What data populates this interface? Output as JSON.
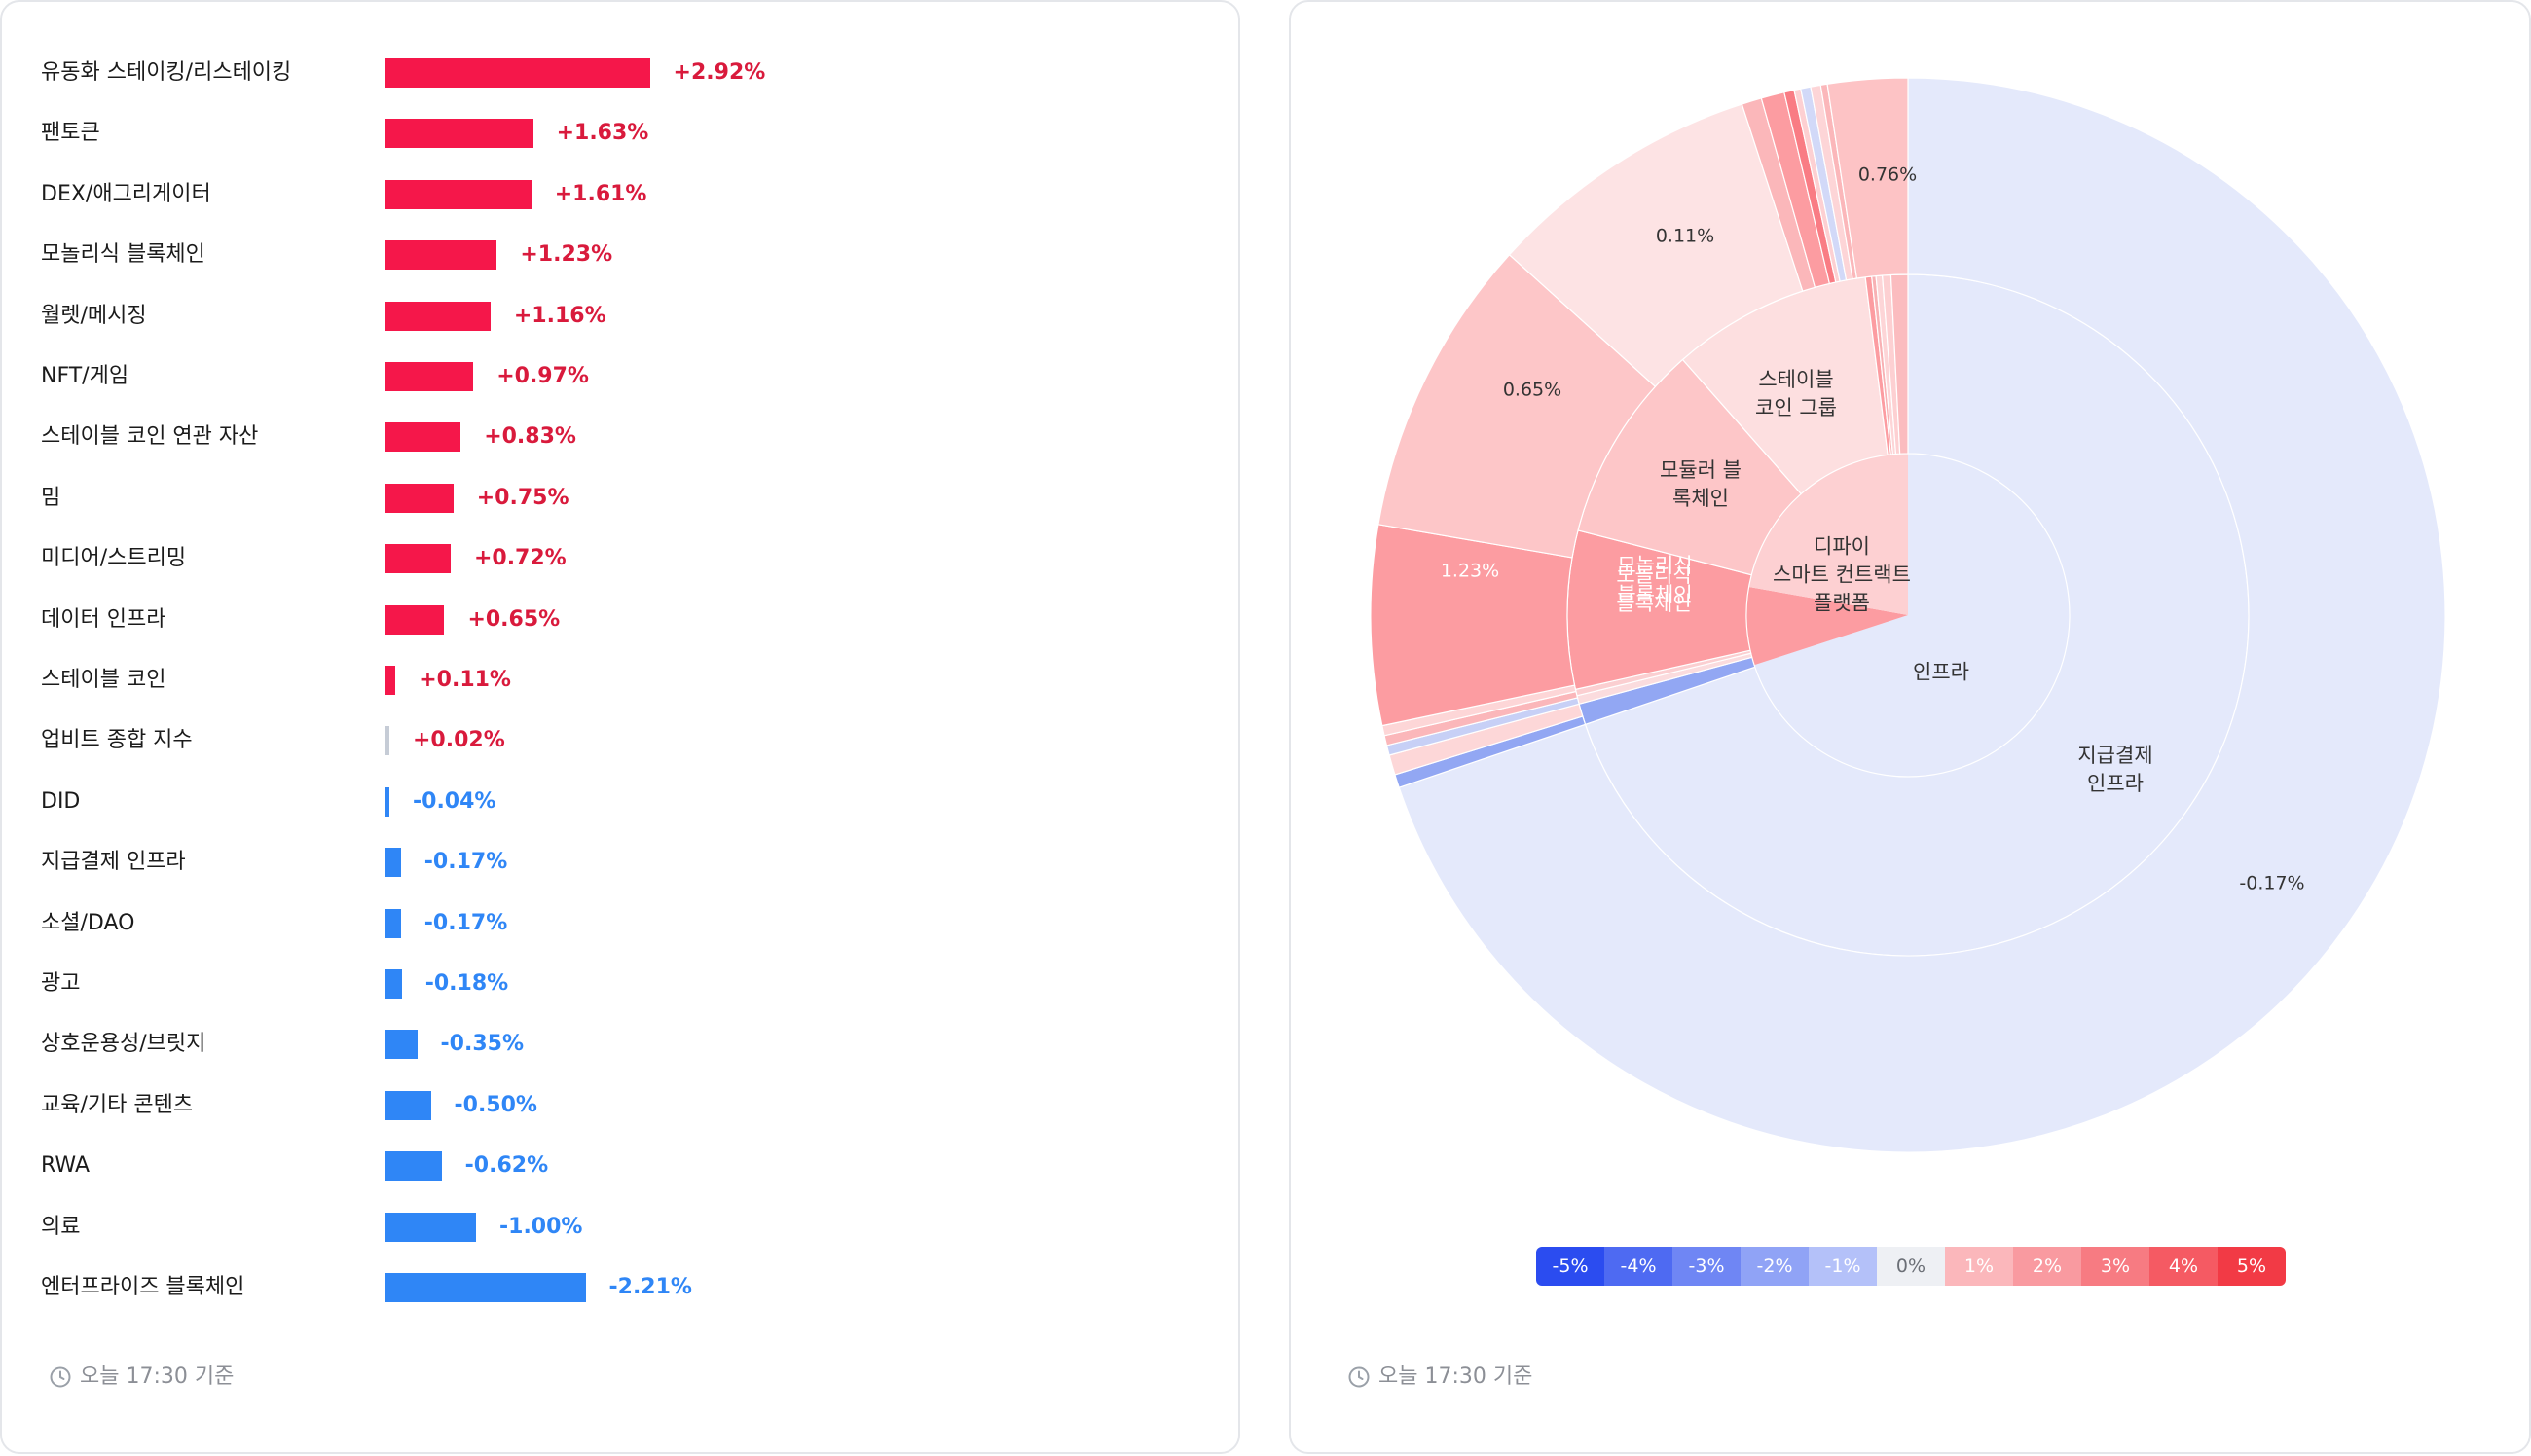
{
  "chart_data": [
    {
      "type": "bar",
      "orientation": "horizontal",
      "categories": [
        "유동화 스테이킹/리스테이킹",
        "팬토큰",
        "DEX/애그리게이터",
        "모놀리식 블록체인",
        "월렛/메시징",
        "NFT/게임",
        "스테이블 코인 연관 자산",
        "밈",
        "미디어/스트리밍",
        "데이터 인프라",
        "스테이블 코인",
        "업비트 종합 지수",
        "DID",
        "지급결제 인프라",
        "소셜/DAO",
        "광고",
        "상호운용성/브릿지",
        "교육/기타 콘텐츠",
        "RWA",
        "의료",
        "엔터프라이즈 블록체인"
      ],
      "values": [
        2.92,
        1.63,
        1.61,
        1.23,
        1.16,
        0.97,
        0.83,
        0.75,
        0.72,
        0.65,
        0.11,
        0.02,
        -0.04,
        -0.17,
        -0.17,
        -0.18,
        -0.35,
        -0.5,
        -0.62,
        -1.0,
        -2.21
      ],
      "value_labels": [
        "+2.92%",
        "+1.63%",
        "+1.61%",
        "+1.23%",
        "+1.16%",
        "+0.97%",
        "+0.83%",
        "+0.75%",
        "+0.72%",
        "+0.65%",
        "+0.11%",
        "+0.02%",
        "-0.04%",
        "-0.17%",
        "-0.17%",
        "-0.18%",
        "-0.35%",
        "-0.50%",
        "-0.62%",
        "-1.00%",
        "-2.21%"
      ],
      "colors": {
        "positive": "#f5174a",
        "negative": "#2f86f6",
        "neutral": "#c6ccd6",
        "positive_text": "#d91a3c",
        "negative_text": "#2f86f6"
      },
      "footer": "오늘 17:30 기준"
    },
    {
      "type": "sunburst",
      "inner_ring": [
        {
          "label": "인프라",
          "share": 0.7,
          "color": "#e4e9fb"
        },
        {
          "label": "모놀리식\n블록체인",
          "share": 0.078,
          "color": "#fc9ca1"
        },
        {
          "label": "디파이\n스마트 컨트랙트\n플랫폼",
          "share": 0.222,
          "color": "#fdd0d2"
        }
      ],
      "middle_ring": [
        {
          "label": "지급결제\n인프라",
          "share": 0.698,
          "color": "#e4e9fb"
        },
        {
          "label": "",
          "share": 0.01,
          "color": "#92a7f3"
        },
        {
          "label": "",
          "share": 0.004,
          "color": "#fbdcde"
        },
        {
          "label": "",
          "share": 0.003,
          "color": "#fbcfd1"
        },
        {
          "label": "모놀리식\n블록체인",
          "share": 0.075,
          "color": "#fc9ca1"
        },
        {
          "label": "모듈러 블\n록체인",
          "share": 0.095,
          "color": "#fdc6c8"
        },
        {
          "label": "스테이블\n코인 그룹",
          "share": 0.095,
          "color": "#fddfe0"
        },
        {
          "label": "",
          "share": 0.003,
          "color": "#fc9ca1"
        },
        {
          "label": "",
          "share": 0.002,
          "color": "#f8b1b4"
        },
        {
          "label": "",
          "share": 0.003,
          "color": "#fdd5d7"
        },
        {
          "label": "",
          "share": 0.004,
          "color": "#fdd0d2"
        },
        {
          "label": "",
          "share": 0.008,
          "color": "#fbbcbf"
        }
      ],
      "outer_ring": [
        {
          "label": "-0.17%",
          "share": 0.698,
          "color": "#e4e9fb"
        },
        {
          "label": "",
          "share": 0.004,
          "color": "#92a7f3"
        },
        {
          "label": "",
          "share": 0.006,
          "color": "#fdd7d8"
        },
        {
          "label": "",
          "share": 0.003,
          "color": "#c7d0f6"
        },
        {
          "label": "",
          "share": 0.003,
          "color": "#fbb7ba"
        },
        {
          "label": "",
          "share": 0.003,
          "color": "#fdd6d7"
        },
        {
          "label": "1.23%",
          "share": 0.06,
          "color": "#fc9ca1"
        },
        {
          "label": "0.65%",
          "share": 0.09,
          "color": "#fdc6c8"
        },
        {
          "label": "0.11%",
          "share": 0.083,
          "color": "#fde3e4"
        },
        {
          "label": "",
          "share": 0.006,
          "color": "#fbb7ba"
        },
        {
          "label": "",
          "share": 0.007,
          "color": "#fc9ca1"
        },
        {
          "label": "",
          "share": 0.003,
          "color": "#f97c84"
        },
        {
          "label": "",
          "share": 0.002,
          "color": "#fdd0d2"
        },
        {
          "label": "",
          "share": 0.003,
          "color": "#d2d9f8"
        },
        {
          "label": "",
          "share": 0.003,
          "color": "#fdd5d7"
        },
        {
          "label": "",
          "share": 0.002,
          "color": "#fbb7ba"
        },
        {
          "label": "0.76%",
          "share": 0.024,
          "color": "#fdc3c5"
        }
      ],
      "legend": [
        {
          "label": "-5%",
          "color": "#2b4cf0",
          "text": "#ffffff"
        },
        {
          "label": "-4%",
          "color": "#4e6af2",
          "text": "#ffffff"
        },
        {
          "label": "-3%",
          "color": "#6f86f4",
          "text": "#ffffff"
        },
        {
          "label": "-2%",
          "color": "#90a3f6",
          "text": "#ffffff"
        },
        {
          "label": "-1%",
          "color": "#b4c1f9",
          "text": "#ffffff"
        },
        {
          "label": "0%",
          "color": "#eef0f4",
          "text": "#6b6f76"
        },
        {
          "label": "1%",
          "color": "#fbb7bb",
          "text": "#ffffff"
        },
        {
          "label": "2%",
          "color": "#f99aa0",
          "text": "#ffffff"
        },
        {
          "label": "3%",
          "color": "#f77b82",
          "text": "#ffffff"
        },
        {
          "label": "4%",
          "color": "#f55a63",
          "text": "#ffffff"
        },
        {
          "label": "5%",
          "color": "#f23a45",
          "text": "#ffffff"
        }
      ],
      "footer": "오늘 17:30 기준"
    }
  ]
}
